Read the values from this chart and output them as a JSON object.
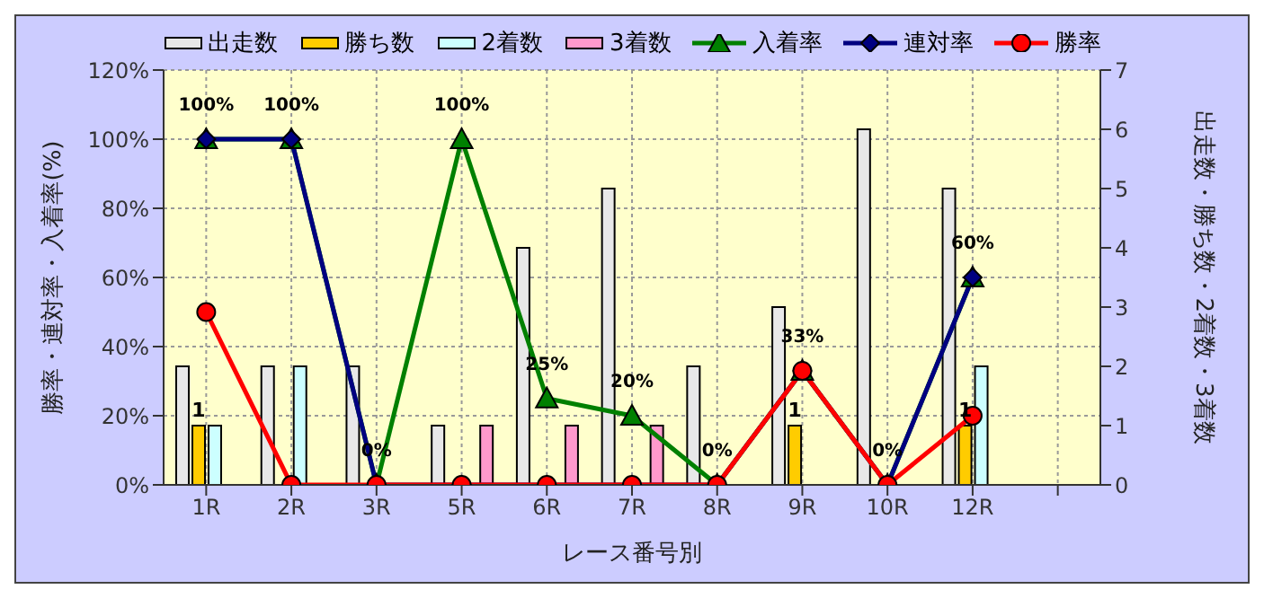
{
  "chart_data": {
    "type": "bar",
    "xlabel": "レース番号別",
    "ylabel": "勝率・連対率・入着率(%)",
    "y2label": "出走数・勝ち数・2着数・3着数",
    "categories": [
      "1R",
      "2R",
      "3R",
      "5R",
      "6R",
      "7R",
      "8R",
      "9R",
      "10R",
      "12R",
      null
    ],
    "series": [
      {
        "name": "出走数",
        "axis": "y2",
        "color": "#e8e8e8",
        "values": [
          2,
          2,
          2,
          1,
          4,
          5,
          2,
          3,
          6,
          5,
          null
        ]
      },
      {
        "name": "勝ち数",
        "axis": "y2",
        "color": "#ffcc00",
        "values": [
          1,
          0,
          0,
          0,
          0,
          0,
          0,
          1,
          0,
          1,
          null
        ],
        "value_labels": [
          "1",
          null,
          null,
          null,
          null,
          null,
          null,
          "1",
          null,
          "1",
          null
        ]
      },
      {
        "name": "2着数",
        "axis": "y2",
        "color": "#ccffff",
        "values": [
          1,
          2,
          0,
          0,
          0,
          0,
          0,
          0,
          0,
          2,
          null
        ]
      },
      {
        "name": "3着数",
        "axis": "y2",
        "color": "#ff99cc",
        "values": [
          0,
          0,
          0,
          1,
          1,
          1,
          0,
          0,
          0,
          0,
          null
        ]
      },
      {
        "name": "入着率",
        "type": "line",
        "color": "#008000",
        "marker": "triangle",
        "values": [
          100,
          100,
          0,
          100,
          25,
          20,
          0,
          33,
          0,
          60,
          null
        ],
        "value_labels": [
          "100%",
          "100%",
          "0%",
          "100%",
          "25%",
          "20%",
          "0%",
          "33%",
          "0%",
          "60%",
          null
        ]
      },
      {
        "name": "連対率",
        "type": "line",
        "color": "#000080",
        "marker": "diamond",
        "values": [
          100,
          100,
          0,
          0,
          0,
          0,
          0,
          33,
          0,
          60,
          null
        ]
      },
      {
        "name": "勝率",
        "type": "line",
        "color": "#ff0000",
        "marker": "circle",
        "values": [
          50,
          0,
          0,
          0,
          0,
          0,
          0,
          33,
          0,
          20,
          null
        ]
      }
    ],
    "ylim": [
      0,
      120
    ],
    "yticks": [
      {
        "value": 0,
        "label": "0%"
      },
      {
        "value": 20,
        "label": "20%"
      },
      {
        "value": 40,
        "label": "40%"
      },
      {
        "value": 60,
        "label": "60%"
      },
      {
        "value": 80,
        "label": "80%"
      },
      {
        "value": 100,
        "label": "100%"
      },
      {
        "value": 120,
        "label": "120%"
      }
    ],
    "y2lim": [
      0,
      7
    ],
    "y2ticks": [
      0,
      1,
      2,
      3,
      4,
      5,
      6,
      7
    ],
    "grid": true,
    "legend": "top"
  }
}
